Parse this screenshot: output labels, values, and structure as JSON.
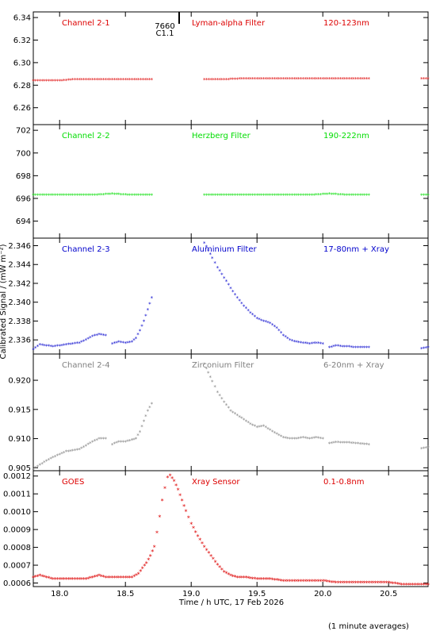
{
  "ylabel": "Calibrated Signal / (mW m⁻²)",
  "xlabel": "Time / h UTC, 17 Feb 2026",
  "footnote": "(1 minute averages)",
  "annotation": {
    "line1": "7660",
    "line2": "C1.1",
    "x": 18.8
  },
  "xlim": [
    17.8,
    20.8
  ],
  "xticks": [
    18.0,
    18.5,
    19.0,
    19.5,
    20.0,
    20.5
  ],
  "xtick_labels": [
    "18.0",
    "18.5",
    "19.0",
    "19.5",
    "20.0",
    "20.5"
  ],
  "chart_data": [
    {
      "type": "scatter",
      "color": "#dd0000",
      "channel": "Channel 2-1",
      "filter": "Lyman-alpha Filter",
      "band": "120-123nm",
      "ylim": [
        6.245,
        6.345
      ],
      "yticks": [
        6.26,
        6.28,
        6.3,
        6.32,
        6.34
      ],
      "ytick_labels": [
        "6.26",
        "6.28",
        "6.30",
        "6.32",
        "6.34"
      ],
      "series": [
        {
          "x": [
            17.8,
            17.9,
            18.0,
            18.1,
            18.2,
            18.3,
            18.4,
            18.5,
            18.6,
            18.7
          ],
          "y": [
            6.284,
            6.284,
            6.284,
            6.285,
            6.285,
            6.285,
            6.285,
            6.285,
            6.285,
            6.285
          ]
        },
        {
          "x": [
            19.1,
            19.25,
            19.4,
            19.55,
            19.7,
            19.85,
            20.0,
            20.15,
            20.35
          ],
          "y": [
            6.285,
            6.285,
            6.286,
            6.286,
            6.286,
            6.286,
            6.286,
            6.286,
            6.286
          ]
        },
        {
          "x": [
            20.75,
            20.8
          ],
          "y": [
            6.286,
            6.286
          ]
        }
      ]
    },
    {
      "type": "scatter",
      "color": "#00dd00",
      "channel": "Channel 2-2",
      "filter": "Herzberg Filter",
      "band": "190-222nm",
      "ylim": [
        692.5,
        702.5
      ],
      "yticks": [
        694,
        696,
        698,
        700,
        702
      ],
      "ytick_labels": [
        "694",
        "696",
        "698",
        "700",
        "702"
      ],
      "series": [
        {
          "x": [
            17.8,
            17.95,
            18.1,
            18.25,
            18.4,
            18.55,
            18.7
          ],
          "y": [
            696.3,
            696.3,
            696.3,
            696.3,
            696.4,
            696.3,
            696.3
          ]
        },
        {
          "x": [
            19.1,
            19.3,
            19.5,
            19.7,
            19.9,
            20.05,
            20.2,
            20.35
          ],
          "y": [
            696.3,
            696.3,
            696.3,
            696.3,
            696.3,
            696.4,
            696.3,
            696.3
          ]
        },
        {
          "x": [
            20.75,
            20.8
          ],
          "y": [
            696.3,
            696.3
          ]
        }
      ]
    },
    {
      "type": "scatter",
      "color": "#0000cc",
      "channel": "Channel 2-3",
      "filter": "Aluminium Filter",
      "band": "17-80nm + Xray",
      "ylim": [
        2.3345,
        2.3468
      ],
      "yticks": [
        2.336,
        2.338,
        2.34,
        2.342,
        2.344,
        2.346
      ],
      "ytick_labels": [
        "2.336",
        "2.338",
        "2.340",
        "2.342",
        "2.344",
        "2.346"
      ],
      "series": [
        {
          "x": [
            17.8,
            17.85,
            17.9,
            17.95,
            18.0,
            18.05,
            18.1,
            18.15,
            18.2,
            18.25,
            18.3,
            18.35
          ],
          "y": [
            2.335,
            2.3355,
            2.3354,
            2.3353,
            2.3354,
            2.3355,
            2.3356,
            2.3357,
            2.336,
            2.3364,
            2.3366,
            2.3365
          ]
        },
        {
          "x": [
            18.4,
            18.45,
            18.5,
            18.55,
            18.58,
            18.61,
            18.64,
            18.67,
            18.7
          ],
          "y": [
            2.3356,
            2.3358,
            2.3357,
            2.3358,
            2.3362,
            2.337,
            2.338,
            2.3392,
            2.3405
          ]
        },
        {
          "x": [
            19.1,
            19.13,
            19.16,
            19.2,
            19.25,
            19.3,
            19.35,
            19.4,
            19.45,
            19.5,
            19.55,
            19.6,
            19.65,
            19.7,
            19.75,
            19.8,
            19.85,
            19.9,
            19.95,
            20.0
          ],
          "y": [
            2.3463,
            2.3455,
            2.3447,
            2.3437,
            2.3426,
            2.3415,
            2.3405,
            2.3396,
            2.3389,
            2.3383,
            2.338,
            2.3378,
            2.3373,
            2.3365,
            2.336,
            2.3358,
            2.3357,
            2.3356,
            2.3357,
            2.3356
          ]
        },
        {
          "x": [
            20.05,
            20.1,
            20.15,
            20.2,
            20.25,
            20.3,
            20.35
          ],
          "y": [
            2.3352,
            2.3354,
            2.3353,
            2.3353,
            2.3352,
            2.3352,
            2.3352
          ]
        },
        {
          "x": [
            20.75,
            20.8
          ],
          "y": [
            2.3351,
            2.3352
          ]
        }
      ]
    },
    {
      "type": "scatter",
      "color": "#808080",
      "channel": "Channel 2-4",
      "filter": "Zirconium Filter",
      "band": "6-20nm + Xray",
      "ylim": [
        0.9045,
        0.9245
      ],
      "yticks": [
        0.905,
        0.91,
        0.915,
        0.92
      ],
      "ytick_labels": [
        "0.905",
        "0.910",
        "0.915",
        "0.920"
      ],
      "series": [
        {
          "x": [
            17.8,
            17.85,
            17.9,
            17.95,
            18.0,
            18.05,
            18.1,
            18.15,
            18.2,
            18.25,
            18.3,
            18.35
          ],
          "y": [
            0.9048,
            0.9055,
            0.9062,
            0.9068,
            0.9073,
            0.9078,
            0.908,
            0.9082,
            0.9088,
            0.9095,
            0.91,
            0.91
          ]
        },
        {
          "x": [
            18.4,
            18.45,
            18.5,
            18.55,
            18.58,
            18.61,
            18.64,
            18.67,
            18.7
          ],
          "y": [
            0.909,
            0.9095,
            0.9095,
            0.9098,
            0.91,
            0.9112,
            0.913,
            0.9148,
            0.916
          ]
        },
        {
          "x": [
            19.1,
            19.13,
            19.16,
            19.2,
            19.25,
            19.3,
            19.35,
            19.4,
            19.45,
            19.5,
            19.55,
            19.6,
            19.65,
            19.7,
            19.75,
            19.8,
            19.85,
            19.9,
            19.95,
            20.0
          ],
          "y": [
            0.9228,
            0.9213,
            0.9198,
            0.918,
            0.9163,
            0.9148,
            0.914,
            0.9133,
            0.9125,
            0.912,
            0.9122,
            0.9115,
            0.9108,
            0.9102,
            0.91,
            0.91,
            0.9102,
            0.91,
            0.9102,
            0.91
          ]
        },
        {
          "x": [
            20.05,
            20.1,
            20.15,
            20.2,
            20.25,
            20.3,
            20.35
          ],
          "y": [
            0.9092,
            0.9094,
            0.9093,
            0.9093,
            0.9092,
            0.9091,
            0.909
          ]
        },
        {
          "x": [
            20.75,
            20.8
          ],
          "y": [
            0.9083,
            0.9085
          ]
        }
      ]
    },
    {
      "type": "scatter",
      "color": "#dd0000",
      "channel": "GOES",
      "filter": "Xray Sensor",
      "band": "0.1-0.8nm",
      "ylim": [
        0.00058,
        0.00123
      ],
      "yticks": [
        0.0006,
        0.0007,
        0.0008,
        0.0009,
        0.001,
        0.0011,
        0.0012
      ],
      "ytick_labels": [
        "0.0006",
        "0.0007",
        "0.0008",
        "0.0009",
        "0.0010",
        "0.0011",
        "0.0012"
      ],
      "series": [
        {
          "x": [
            17.8,
            17.85,
            17.9,
            17.95,
            18.0,
            18.05,
            18.1,
            18.15,
            18.2,
            18.25,
            18.3,
            18.35,
            18.4,
            18.45,
            18.5,
            18.55,
            18.6,
            18.63,
            18.66,
            18.69,
            18.72,
            18.74,
            18.76,
            18.78,
            18.8,
            18.82,
            18.84,
            18.87,
            18.9,
            18.93,
            18.96,
            19.0,
            19.05,
            19.1,
            19.15,
            19.2,
            19.25,
            19.3,
            19.35,
            19.4,
            19.5,
            19.6,
            19.7,
            19.8,
            19.9,
            20.0,
            20.1,
            20.2,
            20.3,
            20.4,
            20.5,
            20.6,
            20.7,
            20.8
          ],
          "y": [
            0.00063,
            0.00064,
            0.00063,
            0.00062,
            0.00062,
            0.00062,
            0.00062,
            0.00062,
            0.00062,
            0.00063,
            0.00064,
            0.00063,
            0.00063,
            0.00063,
            0.00063,
            0.00063,
            0.00065,
            0.00068,
            0.00071,
            0.00075,
            0.0008,
            0.00088,
            0.00097,
            0.00106,
            0.00113,
            0.00119,
            0.0012,
            0.00117,
            0.00112,
            0.00106,
            0.001,
            0.00093,
            0.00086,
            0.0008,
            0.00075,
            0.0007,
            0.00066,
            0.00064,
            0.00063,
            0.00063,
            0.00062,
            0.00062,
            0.00061,
            0.00061,
            0.00061,
            0.00061,
            0.0006,
            0.0006,
            0.0006,
            0.0006,
            0.0006,
            0.00059,
            0.00059,
            0.00059
          ]
        }
      ]
    }
  ]
}
